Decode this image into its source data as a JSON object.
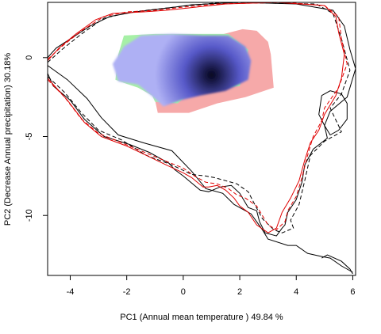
{
  "chart_data": {
    "type": "heatmap",
    "title": "",
    "xlabel": "PC1 (Annual mean temperature ) 49.84 %",
    "ylabel": "PC2 (Decrease Annual precipitation) 30.18%",
    "xlim": [
      -4.8,
      6.1
    ],
    "ylim": [
      -13.8,
      3.5
    ],
    "x_ticks": [
      -4,
      -2,
      0,
      2,
      4,
      6
    ],
    "y_ticks": [
      0,
      -5,
      -10
    ],
    "x_tick_labels": [
      "-4",
      "-2",
      "0",
      "2",
      "4",
      "6"
    ],
    "y_tick_labels": [
      "0",
      "-5",
      "-10"
    ],
    "grid": false,
    "legend": "none",
    "colors": {
      "density_low": "#aeb0f4",
      "density_high": "#05051e",
      "region_red": "#f6a9a9",
      "region_green": "#a6f0a6",
      "contour_black": "#000000",
      "contour_red": "#e00000"
    },
    "density": {
      "peak": [
        1.0,
        -1.1
      ]
    },
    "region_red": [
      [
        -0.9,
        1.1
      ],
      [
        1.0,
        1.3
      ],
      [
        2.1,
        1.8
      ],
      [
        2.6,
        1.7
      ],
      [
        3.0,
        1.0
      ],
      [
        3.1,
        0.2
      ],
      [
        3.2,
        -1.9
      ],
      [
        2.2,
        -2.5
      ],
      [
        1.2,
        -2.9
      ],
      [
        0.2,
        -3.5
      ],
      [
        -0.9,
        -3.5
      ],
      [
        -1.0,
        -2.7
      ],
      [
        -0.2,
        -1.7
      ],
      [
        0.6,
        0.1
      ],
      [
        -0.2,
        0.9
      ]
    ],
    "region_green": [
      [
        -2.3,
        0.2
      ],
      [
        -2.1,
        1.4
      ],
      [
        -1.0,
        1.5
      ],
      [
        0.4,
        1.5
      ],
      [
        1.6,
        1.5
      ],
      [
        2.3,
        0.5
      ],
      [
        2.0,
        -1.8
      ],
      [
        0.3,
        -2.2
      ],
      [
        -0.2,
        -2.9
      ],
      [
        -1.0,
        -2.8
      ],
      [
        -1.1,
        -2.4
      ],
      [
        -1.6,
        -1.9
      ],
      [
        -2.1,
        -1.6
      ],
      [
        -2.4,
        -1.4
      ]
    ],
    "region_blue": [
      [
        -2.1,
        0.7
      ],
      [
        -1.5,
        1.4
      ],
      [
        -0.4,
        1.5
      ],
      [
        0.7,
        1.4
      ],
      [
        1.6,
        1.4
      ],
      [
        2.2,
        0.7
      ],
      [
        2.4,
        -0.2
      ],
      [
        2.3,
        -1.4
      ],
      [
        1.5,
        -2.1
      ],
      [
        0.6,
        -2.4
      ],
      [
        -0.1,
        -2.7
      ],
      [
        -0.7,
        -3.1
      ],
      [
        -1.0,
        -2.6
      ],
      [
        -1.6,
        -1.7
      ],
      [
        -2.3,
        -1.5
      ],
      [
        -2.5,
        -0.4
      ]
    ],
    "contours": [
      {
        "color": "contour_black",
        "dash": "solid",
        "points": [
          [
            -4.8,
            0.0
          ],
          [
            -4.5,
            0.6
          ],
          [
            -3.9,
            1.3
          ],
          [
            -3.3,
            2.0
          ],
          [
            -2.6,
            2.6
          ],
          [
            -1.7,
            2.9
          ],
          [
            -0.3,
            3.2
          ],
          [
            0.3,
            3.35
          ],
          [
            2.0,
            3.5
          ],
          [
            4.0,
            3.4
          ],
          [
            5.3,
            3.0
          ],
          [
            5.7,
            2.0
          ],
          [
            5.9,
            0.5
          ],
          [
            6.1,
            -0.7
          ],
          [
            5.8,
            -2.5
          ],
          [
            5.2,
            -3.4
          ],
          [
            5.0,
            -4.3
          ],
          [
            5.1,
            -5.1
          ],
          [
            4.6,
            -5.8
          ],
          [
            4.3,
            -6.8
          ],
          [
            4.2,
            -7.9
          ],
          [
            4.0,
            -9.0
          ],
          [
            3.7,
            -9.8
          ],
          [
            3.6,
            -10.6
          ],
          [
            3.5,
            -10.8
          ],
          [
            3.3,
            -11.3
          ],
          [
            2.9,
            -11.1
          ],
          [
            2.7,
            -10.4
          ],
          [
            2.6,
            -9.7
          ],
          [
            2.3,
            -9.5
          ],
          [
            2.0,
            -8.6
          ],
          [
            1.7,
            -8.1
          ],
          [
            1.3,
            -8.2
          ],
          [
            0.9,
            -8.5
          ],
          [
            0.6,
            -8.4
          ],
          [
            0.0,
            -7.5
          ],
          [
            -0.3,
            -7.1
          ],
          [
            -0.5,
            -6.7
          ],
          [
            -0.8,
            -6.4
          ],
          [
            -1.2,
            -6.0
          ],
          [
            -1.9,
            -5.5
          ],
          [
            -2.8,
            -5.0
          ],
          [
            -3.5,
            -3.9
          ],
          [
            -4.0,
            -2.7
          ],
          [
            -4.6,
            -1.8
          ],
          [
            -4.8,
            -1.0
          ]
        ]
      },
      {
        "color": "contour_black",
        "dash": "solid",
        "points": [
          [
            -4.8,
            -0.5
          ],
          [
            -4.1,
            -1.4
          ],
          [
            -3.4,
            -2.6
          ],
          [
            -2.9,
            -3.8
          ],
          [
            -2.3,
            -4.9
          ],
          [
            -1.4,
            -5.4
          ],
          [
            -0.4,
            -5.9
          ],
          [
            0.3,
            -7.2
          ],
          [
            0.8,
            -8.3
          ],
          [
            1.4,
            -8.6
          ],
          [
            1.8,
            -9.3
          ],
          [
            2.4,
            -9.9
          ],
          [
            2.8,
            -10.9
          ],
          [
            3.0,
            -11.5
          ],
          [
            3.7,
            -11.9
          ],
          [
            4.0,
            -11.9
          ],
          [
            4.4,
            -12.4
          ],
          [
            4.9,
            -12.6
          ],
          [
            5.2,
            -12.7
          ],
          [
            5.6,
            -13.2
          ],
          [
            6.0,
            -13.6
          ]
        ]
      },
      {
        "color": "contour_black",
        "dash": "solid",
        "points": [
          [
            4.9,
            -2.4
          ],
          [
            5.2,
            -2.1
          ],
          [
            5.6,
            -2.3
          ],
          [
            5.8,
            -2.9
          ],
          [
            5.8,
            -3.9
          ],
          [
            5.5,
            -4.6
          ],
          [
            5.2,
            -4.9
          ],
          [
            5.0,
            -4.3
          ],
          [
            4.8,
            -3.6
          ],
          [
            4.9,
            -2.4
          ]
        ]
      },
      {
        "color": "contour_black",
        "dash": "solid",
        "points": [
          [
            4.9,
            -12.7
          ],
          [
            5.1,
            -12.5
          ],
          [
            5.6,
            -12.9
          ],
          [
            5.9,
            -13.4
          ],
          [
            6.0,
            -13.7
          ]
        ]
      },
      {
        "color": "contour_black",
        "dash": "dashed",
        "points": [
          [
            -4.8,
            -0.3
          ],
          [
            -4.3,
            0.5
          ],
          [
            -3.6,
            1.5
          ],
          [
            -2.8,
            2.5
          ],
          [
            -1.8,
            2.9
          ],
          [
            -0.8,
            3.1
          ],
          [
            0.2,
            3.3
          ],
          [
            1.4,
            3.5
          ],
          [
            4.7,
            3.4
          ],
          [
            5.3,
            2.8
          ],
          [
            5.6,
            1.2
          ],
          [
            5.9,
            -0.8
          ],
          [
            5.6,
            -2.3
          ],
          [
            5.2,
            -3.2
          ],
          [
            5.6,
            -4.7
          ],
          [
            5.0,
            -5.3
          ],
          [
            4.5,
            -6.2
          ],
          [
            4.3,
            -7.8
          ],
          [
            4.1,
            -9.3
          ],
          [
            3.8,
            -10.3
          ],
          [
            3.9,
            -10.8
          ],
          [
            3.5,
            -11.1
          ],
          [
            3.2,
            -10.9
          ],
          [
            2.8,
            -10.2
          ],
          [
            2.5,
            -9.2
          ],
          [
            2.3,
            -8.5
          ],
          [
            1.9,
            -8.0
          ],
          [
            1.5,
            -7.8
          ],
          [
            1.1,
            -7.6
          ],
          [
            0.8,
            -7.5
          ],
          [
            0.3,
            -7.4
          ],
          [
            -0.4,
            -6.8
          ],
          [
            -1.3,
            -6.2
          ],
          [
            -2.2,
            -5.2
          ],
          [
            -3.0,
            -4.6
          ],
          [
            -3.6,
            -3.5
          ],
          [
            -4.2,
            -2.2
          ],
          [
            -4.8,
            -1.2
          ]
        ]
      },
      {
        "color": "contour_red",
        "dash": "solid",
        "points": [
          [
            -4.8,
            -0.2
          ],
          [
            -4.4,
            0.6
          ],
          [
            -3.8,
            1.5
          ],
          [
            -3.1,
            2.4
          ],
          [
            -2.5,
            2.8
          ],
          [
            -1.4,
            2.9
          ],
          [
            -0.6,
            3.0
          ],
          [
            0.2,
            3.15
          ],
          [
            1.5,
            3.4
          ],
          [
            3.3,
            3.5
          ],
          [
            5.0,
            3.3
          ],
          [
            5.4,
            2.6
          ],
          [
            5.5,
            1.6
          ],
          [
            5.7,
            0.2
          ],
          [
            5.6,
            -1.3
          ],
          [
            5.4,
            -2.4
          ],
          [
            5.0,
            -3.6
          ],
          [
            4.8,
            -4.6
          ],
          [
            4.5,
            -5.4
          ],
          [
            4.3,
            -6.5
          ],
          [
            4.1,
            -7.8
          ],
          [
            3.8,
            -8.9
          ],
          [
            3.5,
            -9.8
          ],
          [
            3.3,
            -10.8
          ],
          [
            3.0,
            -11.1
          ],
          [
            2.6,
            -10.6
          ],
          [
            2.3,
            -9.8
          ],
          [
            2.0,
            -9.4
          ],
          [
            1.8,
            -8.9
          ],
          [
            1.5,
            -8.4
          ],
          [
            1.2,
            -8.1
          ],
          [
            0.9,
            -8.2
          ],
          [
            0.7,
            -8.2
          ],
          [
            0.3,
            -7.6
          ],
          [
            0.0,
            -7.3
          ],
          [
            -0.6,
            -6.8
          ],
          [
            -1.3,
            -6.2
          ],
          [
            -2.0,
            -5.6
          ],
          [
            -2.9,
            -5.0
          ],
          [
            -3.5,
            -4.1
          ],
          [
            -4.1,
            -2.7
          ],
          [
            -4.6,
            -1.7
          ],
          [
            -4.8,
            -1.3
          ]
        ]
      },
      {
        "color": "contour_red",
        "dash": "dashed",
        "points": [
          [
            -4.8,
            -0.1
          ],
          [
            -4.3,
            0.7
          ],
          [
            -3.6,
            1.7
          ],
          [
            -2.8,
            2.6
          ],
          [
            -2.0,
            2.9
          ],
          [
            -1.0,
            3.0
          ],
          [
            0.0,
            3.2
          ],
          [
            1.2,
            3.4
          ],
          [
            3.6,
            3.5
          ],
          [
            5.0,
            3.3
          ],
          [
            5.5,
            2.6
          ],
          [
            5.6,
            1.2
          ],
          [
            5.8,
            -0.4
          ],
          [
            5.5,
            -1.9
          ],
          [
            5.0,
            -3.2
          ],
          [
            4.9,
            -4.0
          ],
          [
            4.6,
            -5.0
          ],
          [
            4.4,
            -6.2
          ],
          [
            4.2,
            -7.6
          ],
          [
            4.0,
            -8.8
          ],
          [
            3.7,
            -9.7
          ],
          [
            3.6,
            -10.4
          ],
          [
            3.3,
            -10.9
          ],
          [
            3.0,
            -10.6
          ],
          [
            2.8,
            -10.0
          ],
          [
            2.6,
            -9.4
          ],
          [
            2.2,
            -8.9
          ],
          [
            1.9,
            -8.7
          ],
          [
            1.6,
            -8.3
          ],
          [
            1.2,
            -8.0
          ],
          [
            0.8,
            -7.9
          ],
          [
            0.4,
            -7.5
          ],
          [
            0.0,
            -7.0
          ],
          [
            -0.7,
            -6.5
          ],
          [
            -1.5,
            -5.9
          ],
          [
            -2.3,
            -5.3
          ],
          [
            -3.0,
            -4.8
          ],
          [
            -3.6,
            -3.9
          ],
          [
            -4.2,
            -2.5
          ],
          [
            -4.8,
            -1.4
          ]
        ]
      }
    ]
  }
}
